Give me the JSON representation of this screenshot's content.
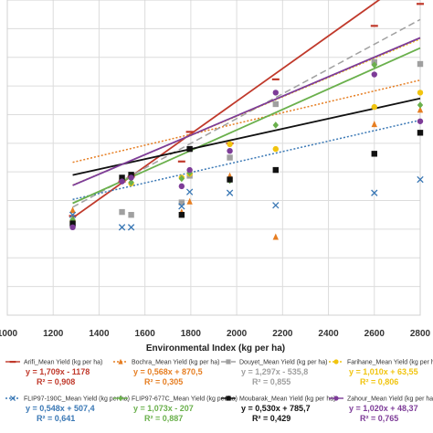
{
  "chart_data": {
    "type": "scatter",
    "title": "",
    "xlabel": "Environmental Index (kg per ha)",
    "ylabel": "",
    "xlim": [
      1000,
      2800
    ],
    "ylim": [
      0,
      3300
    ],
    "xticks": [
      "1000",
      "1200",
      "1400",
      "1600",
      "1800",
      "2000",
      "2200",
      "2400",
      "2600",
      "2800"
    ],
    "x_tick_values": [
      1000,
      1200,
      1400,
      1600,
      1800,
      2000,
      2200,
      2400,
      2600,
      2800
    ],
    "grid": true,
    "legend_position": "bottom",
    "x": [
      1285,
      1500,
      1540,
      1760,
      1795,
      1970,
      2170,
      2600,
      2800
    ],
    "series": [
      {
        "name": "Arifi_Mean Yield (kg per ha)",
        "color": "#c0392b",
        "marker": "dash",
        "line": "solid",
        "values": [
          1040,
          1400,
          1450,
          1610,
          1920,
          1800,
          2470,
          3030,
          3260
        ],
        "equation": "y = 1,709x - 1178",
        "r2": "R² = 0,908",
        "slope": 1.709,
        "intercept": -1178
      },
      {
        "name": "Bochra_Mean Yield (kg per ha)",
        "color": "#e67e22",
        "marker": "triangle",
        "line": "dotted",
        "values": [
          1100,
          1420,
          1460,
          1080,
          1190,
          1460,
          820,
          2000,
          2150
        ],
        "equation": "y = 0,568x + 870,5",
        "r2": "R² = 0,305",
        "slope": 0.568,
        "intercept": 870.5
      },
      {
        "name": "Douyet_Mean Yield (kg per ha)",
        "color": "#a0a0a0",
        "marker": "square",
        "line": "dashed",
        "values": [
          950,
          1080,
          1050,
          1180,
          1460,
          1650,
          2210,
          2650,
          2630
        ],
        "equation": "y = 1,297x - 535,8",
        "r2": "R² = 0,855",
        "slope": 1.297,
        "intercept": -535.8
      },
      {
        "name": "Farihane_Mean Yield (kg per ha)",
        "color": "#f1c40f",
        "marker": "circle",
        "line": "dotted",
        "values": [
          980,
          1430,
          1380,
          1440,
          1480,
          1790,
          1740,
          2180,
          2330
        ],
        "equation": "y = 1,010x + 63,55",
        "r2": "R² = 0,806",
        "slope": 1.01,
        "intercept": 63.55
      },
      {
        "name": "FLIP97-190C_Mean Yield (kg per ha)",
        "color": "#3a78b5",
        "marker": "x",
        "line": "dotted",
        "values": [
          1050,
          920,
          920,
          1140,
          1290,
          1280,
          1150,
          1280,
          1420
        ],
        "equation": "y = 0,548x + 507,4",
        "r2": "R² = 0,641",
        "slope": 0.548,
        "intercept": 507.4
      },
      {
        "name": "FLIP97-677C_Mean Yield (kg per ha)",
        "color": "#6ab04c",
        "marker": "diamond",
        "line": "solid",
        "values": [
          1000,
          1430,
          1390,
          1430,
          1490,
          1410,
          1990,
          2620,
          2200
        ],
        "equation": "y = 1,073x - 207",
        "r2": "R² = 0,887",
        "slope": 1.073,
        "intercept": -207
      },
      {
        "name": "Moubarak_Mean Yield (kg per ha)",
        "color": "#111111",
        "marker": "square",
        "line": "solid",
        "values": [
          960,
          1440,
          1470,
          1050,
          1740,
          1420,
          1520,
          1690,
          1910
        ],
        "equation": "y = 0,530x + 785,7",
        "r2": "R² = 0,429",
        "slope": 0.53,
        "intercept": 785.7
      },
      {
        "name": "Zahour_Mean Yield (kg per ha)",
        "color": "#7d3c98",
        "marker": "circle",
        "line": "solid",
        "values": [
          920,
          1400,
          1440,
          1350,
          1520,
          1720,
          2330,
          2520,
          2030
        ],
        "equation": "y = 1,020x + 48,37",
        "r2": "R² = 0,765",
        "slope": 1.02,
        "intercept": 48.37
      }
    ]
  }
}
